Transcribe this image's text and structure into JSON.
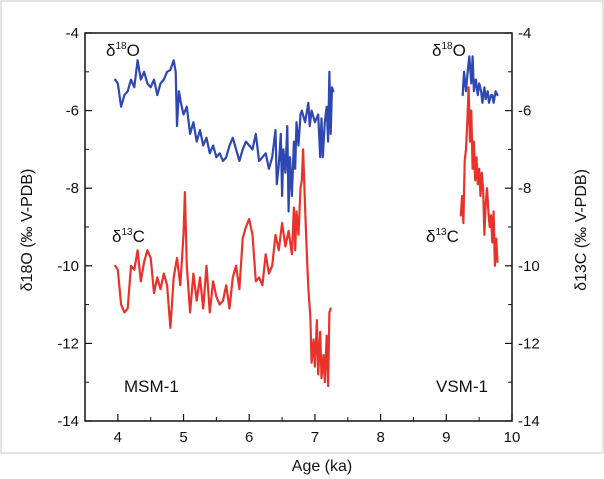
{
  "chart_data": {
    "type": "line",
    "xlabel": "Age (ka)",
    "ylabel_left": "δ18O (‰ V-PDB)",
    "ylabel_right": "δ13C (‰ V-PDB)",
    "xlim": [
      3.5,
      10
    ],
    "ylim": [
      -14,
      -4
    ],
    "x_ticks": [
      4,
      5,
      6,
      7,
      8,
      9,
      10
    ],
    "y_ticks": [
      -4,
      -6,
      -8,
      -10,
      -12,
      -14
    ],
    "grid": false,
    "legend": "none",
    "annotations": {
      "msm_o": {
        "base": "δ",
        "sup": "18",
        "rest": "O"
      },
      "msm_c": {
        "base": "δ",
        "sup": "13",
        "rest": "C"
      },
      "vsm_o": {
        "base": "δ",
        "sup": "18",
        "rest": "O"
      },
      "vsm_c": {
        "base": "δ",
        "sup": "13",
        "rest": "C"
      },
      "msm_label": "MSM-1",
      "vsm_label": "VSM-1"
    },
    "series": [
      {
        "color": "#2f47b0",
        "points": [
          [
            3.96,
            -5.2
          ],
          [
            4.0,
            -5.3
          ],
          [
            4.05,
            -5.9
          ],
          [
            4.1,
            -5.6
          ],
          [
            4.15,
            -5.5
          ],
          [
            4.2,
            -5.2
          ],
          [
            4.25,
            -5.4
          ],
          [
            4.3,
            -4.7
          ],
          [
            4.35,
            -5.2
          ],
          [
            4.4,
            -5.0
          ],
          [
            4.45,
            -5.3
          ],
          [
            4.5,
            -5.4
          ],
          [
            4.55,
            -5.2
          ],
          [
            4.6,
            -5.6
          ],
          [
            4.65,
            -5.3
          ],
          [
            4.7,
            -5.2
          ],
          [
            4.75,
            -5.0
          ],
          [
            4.8,
            -4.95
          ],
          [
            4.85,
            -4.7
          ],
          [
            4.88,
            -5.0
          ],
          [
            4.9,
            -6.4
          ],
          [
            4.93,
            -5.5
          ],
          [
            4.96,
            -5.8
          ],
          [
            5.0,
            -6.1
          ],
          [
            5.05,
            -5.9
          ],
          [
            5.1,
            -6.6
          ],
          [
            5.15,
            -6.3
          ],
          [
            5.2,
            -6.8
          ],
          [
            5.25,
            -6.5
          ],
          [
            5.3,
            -6.9
          ],
          [
            5.35,
            -6.7
          ],
          [
            5.4,
            -7.1
          ],
          [
            5.45,
            -6.9
          ],
          [
            5.5,
            -7.2
          ],
          [
            5.55,
            -7.1
          ],
          [
            5.6,
            -7.3
          ],
          [
            5.65,
            -7.2
          ],
          [
            5.7,
            -6.9
          ],
          [
            5.75,
            -6.7
          ],
          [
            5.8,
            -7.0
          ],
          [
            5.85,
            -7.3
          ],
          [
            5.9,
            -7.0
          ],
          [
            5.95,
            -6.8
          ],
          [
            6.0,
            -6.9
          ],
          [
            6.05,
            -7.0
          ],
          [
            6.1,
            -6.6
          ],
          [
            6.15,
            -7.3
          ],
          [
            6.2,
            -7.2
          ],
          [
            6.25,
            -7.1
          ],
          [
            6.3,
            -7.5
          ],
          [
            6.35,
            -7.2
          ],
          [
            6.4,
            -6.5
          ],
          [
            6.42,
            -7.9
          ],
          [
            6.45,
            -7.4
          ],
          [
            6.48,
            -6.6
          ],
          [
            6.5,
            -8.2
          ],
          [
            6.52,
            -7.0
          ],
          [
            6.55,
            -7.6
          ],
          [
            6.58,
            -6.4
          ],
          [
            6.6,
            -8.6
          ],
          [
            6.62,
            -7.2
          ],
          [
            6.65,
            -8.2
          ],
          [
            6.68,
            -6.8
          ],
          [
            6.7,
            -7.5
          ],
          [
            6.72,
            -6.3
          ],
          [
            6.75,
            -6.9
          ],
          [
            6.78,
            -6.1
          ],
          [
            6.8,
            -6.0
          ],
          [
            6.85,
            -6.3
          ],
          [
            6.9,
            -5.8
          ],
          [
            6.92,
            -6.4
          ],
          [
            6.95,
            -6.0
          ],
          [
            7.0,
            -6.3
          ],
          [
            7.05,
            -6.1
          ],
          [
            7.08,
            -7.2
          ],
          [
            7.1,
            -6.2
          ],
          [
            7.12,
            -7.2
          ],
          [
            7.15,
            -6.3
          ],
          [
            7.18,
            -5.9
          ],
          [
            7.2,
            -6.8
          ],
          [
            7.22,
            -5.0
          ],
          [
            7.24,
            -6.6
          ],
          [
            7.26,
            -5.4
          ],
          [
            7.28,
            -5.5
          ]
        ]
      },
      {
        "color": "#e8322a",
        "points": [
          [
            3.96,
            -10.0
          ],
          [
            4.0,
            -10.1
          ],
          [
            4.05,
            -11.0
          ],
          [
            4.1,
            -11.2
          ],
          [
            4.15,
            -11.1
          ],
          [
            4.2,
            -10.0
          ],
          [
            4.25,
            -10.1
          ],
          [
            4.3,
            -9.6
          ],
          [
            4.35,
            -10.4
          ],
          [
            4.4,
            -9.9
          ],
          [
            4.45,
            -9.6
          ],
          [
            4.5,
            -9.8
          ],
          [
            4.55,
            -10.7
          ],
          [
            4.6,
            -10.3
          ],
          [
            4.65,
            -10.6
          ],
          [
            4.7,
            -10.2
          ],
          [
            4.75,
            -10.5
          ],
          [
            4.8,
            -11.6
          ],
          [
            4.85,
            -10.3
          ],
          [
            4.9,
            -9.8
          ],
          [
            4.95,
            -10.5
          ],
          [
            5.0,
            -9.2
          ],
          [
            5.02,
            -8.1
          ],
          [
            5.05,
            -10.0
          ],
          [
            5.1,
            -11.2
          ],
          [
            5.15,
            -10.2
          ],
          [
            5.2,
            -10.9
          ],
          [
            5.25,
            -10.3
          ],
          [
            5.3,
            -11.1
          ],
          [
            5.35,
            -10.0
          ],
          [
            5.4,
            -11.2
          ],
          [
            5.45,
            -10.4
          ],
          [
            5.5,
            -10.8
          ],
          [
            5.55,
            -11.0
          ],
          [
            5.6,
            -10.9
          ],
          [
            5.65,
            -10.5
          ],
          [
            5.7,
            -11.1
          ],
          [
            5.75,
            -10.3
          ],
          [
            5.8,
            -10.0
          ],
          [
            5.85,
            -10.6
          ],
          [
            5.9,
            -9.3
          ],
          [
            5.95,
            -9.0
          ],
          [
            6.0,
            -8.8
          ],
          [
            6.05,
            -9.2
          ],
          [
            6.1,
            -10.4
          ],
          [
            6.15,
            -10.3
          ],
          [
            6.2,
            -10.5
          ],
          [
            6.25,
            -9.7
          ],
          [
            6.3,
            -10.2
          ],
          [
            6.35,
            -10.0
          ],
          [
            6.4,
            -9.2
          ],
          [
            6.45,
            -9.6
          ],
          [
            6.5,
            -8.9
          ],
          [
            6.55,
            -9.5
          ],
          [
            6.6,
            -9.1
          ],
          [
            6.65,
            -9.7
          ],
          [
            6.68,
            -8.5
          ],
          [
            6.7,
            -9.6
          ],
          [
            6.72,
            -8.6
          ],
          [
            6.75,
            -9.2
          ],
          [
            6.78,
            -8.0
          ],
          [
            6.8,
            -7.8
          ],
          [
            6.82,
            -7.0
          ],
          [
            6.85,
            -8.5
          ],
          [
            6.88,
            -9.8
          ],
          [
            6.9,
            -10.6
          ],
          [
            6.93,
            -11.3
          ],
          [
            6.95,
            -12.5
          ],
          [
            6.98,
            -11.9
          ],
          [
            7.0,
            -12.6
          ],
          [
            7.03,
            -11.4
          ],
          [
            7.05,
            -12.8
          ],
          [
            7.08,
            -11.7
          ],
          [
            7.1,
            -12.9
          ],
          [
            7.13,
            -12.3
          ],
          [
            7.15,
            -13.0
          ],
          [
            7.18,
            -11.8
          ],
          [
            7.2,
            -13.1
          ],
          [
            7.22,
            -11.2
          ],
          [
            7.24,
            -11.1
          ]
        ]
      },
      {
        "color": "#2f47b0",
        "points": [
          [
            9.25,
            -5.6
          ],
          [
            9.27,
            -5.0
          ],
          [
            9.3,
            -5.5
          ],
          [
            9.32,
            -5.1
          ],
          [
            9.35,
            -4.6
          ],
          [
            9.38,
            -5.3
          ],
          [
            9.4,
            -4.6
          ],
          [
            9.42,
            -5.5
          ],
          [
            9.45,
            -5.2
          ],
          [
            9.48,
            -5.6
          ],
          [
            9.5,
            -5.3
          ],
          [
            9.53,
            -5.5
          ],
          [
            9.55,
            -5.8
          ],
          [
            9.58,
            -5.4
          ],
          [
            9.6,
            -5.7
          ],
          [
            9.63,
            -5.5
          ],
          [
            9.65,
            -5.8
          ],
          [
            9.68,
            -5.6
          ],
          [
            9.7,
            -5.6
          ],
          [
            9.72,
            -5.8
          ],
          [
            9.75,
            -5.5
          ],
          [
            9.78,
            -5.6
          ]
        ]
      },
      {
        "color": "#e8322a",
        "points": [
          [
            9.22,
            -8.7
          ],
          [
            9.24,
            -8.2
          ],
          [
            9.26,
            -8.9
          ],
          [
            9.28,
            -7.3
          ],
          [
            9.3,
            -7.0
          ],
          [
            9.32,
            -6.3
          ],
          [
            9.34,
            -5.4
          ],
          [
            9.36,
            -6.8
          ],
          [
            9.38,
            -6.0
          ],
          [
            9.4,
            -7.5
          ],
          [
            9.42,
            -6.8
          ],
          [
            9.44,
            -7.8
          ],
          [
            9.46,
            -7.2
          ],
          [
            9.48,
            -7.9
          ],
          [
            9.5,
            -7.5
          ],
          [
            9.52,
            -8.2
          ],
          [
            9.54,
            -7.6
          ],
          [
            9.56,
            -8.0
          ],
          [
            9.58,
            -9.2
          ],
          [
            9.6,
            -8.4
          ],
          [
            9.62,
            -8.0
          ],
          [
            9.64,
            -8.6
          ],
          [
            9.66,
            -9.0
          ],
          [
            9.68,
            -8.7
          ],
          [
            9.7,
            -9.4
          ],
          [
            9.72,
            -8.6
          ],
          [
            9.74,
            -10.0
          ],
          [
            9.76,
            -9.3
          ],
          [
            9.78,
            -9.9
          ]
        ]
      }
    ]
  }
}
